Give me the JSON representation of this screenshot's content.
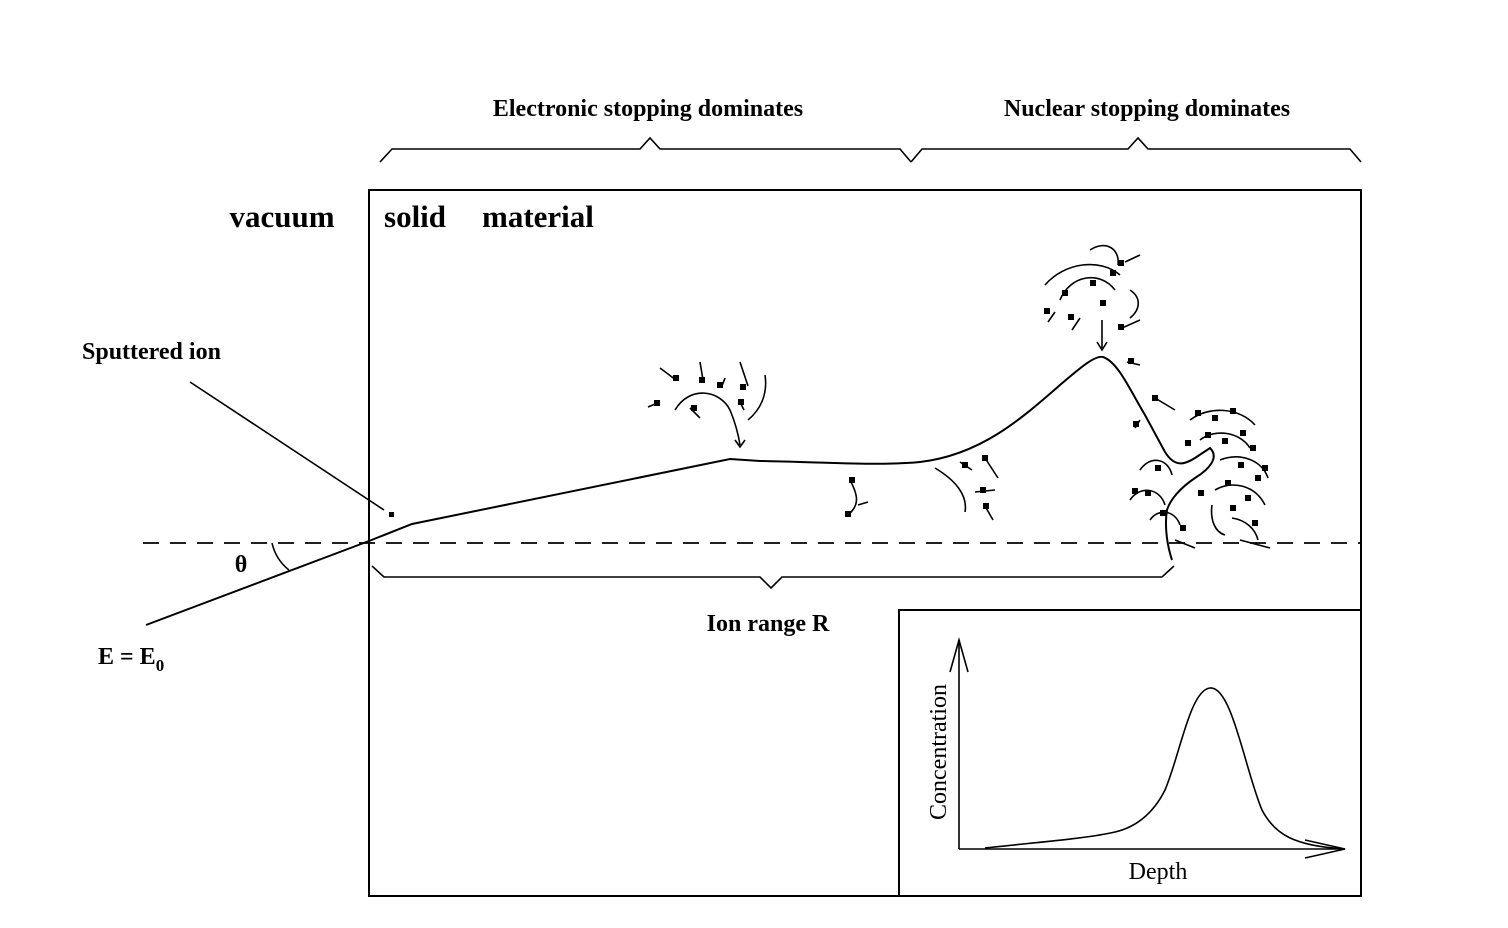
{
  "labels": {
    "electronic_stopping": "Electronic stopping dominates",
    "nuclear_stopping": "Nuclear stopping dominates",
    "vacuum": "vacuum",
    "solid": "solid",
    "material": "material",
    "sputtered_ion": "Sputtered ion",
    "theta": "θ",
    "energy_main": "E = E",
    "energy_sub": "0",
    "ion_range": "Ion range R"
  },
  "inset": {
    "y_axis_label": "Concentration",
    "x_axis_label": "Depth"
  },
  "colors": {
    "ink": "#000000",
    "background": "#ffffff"
  }
}
